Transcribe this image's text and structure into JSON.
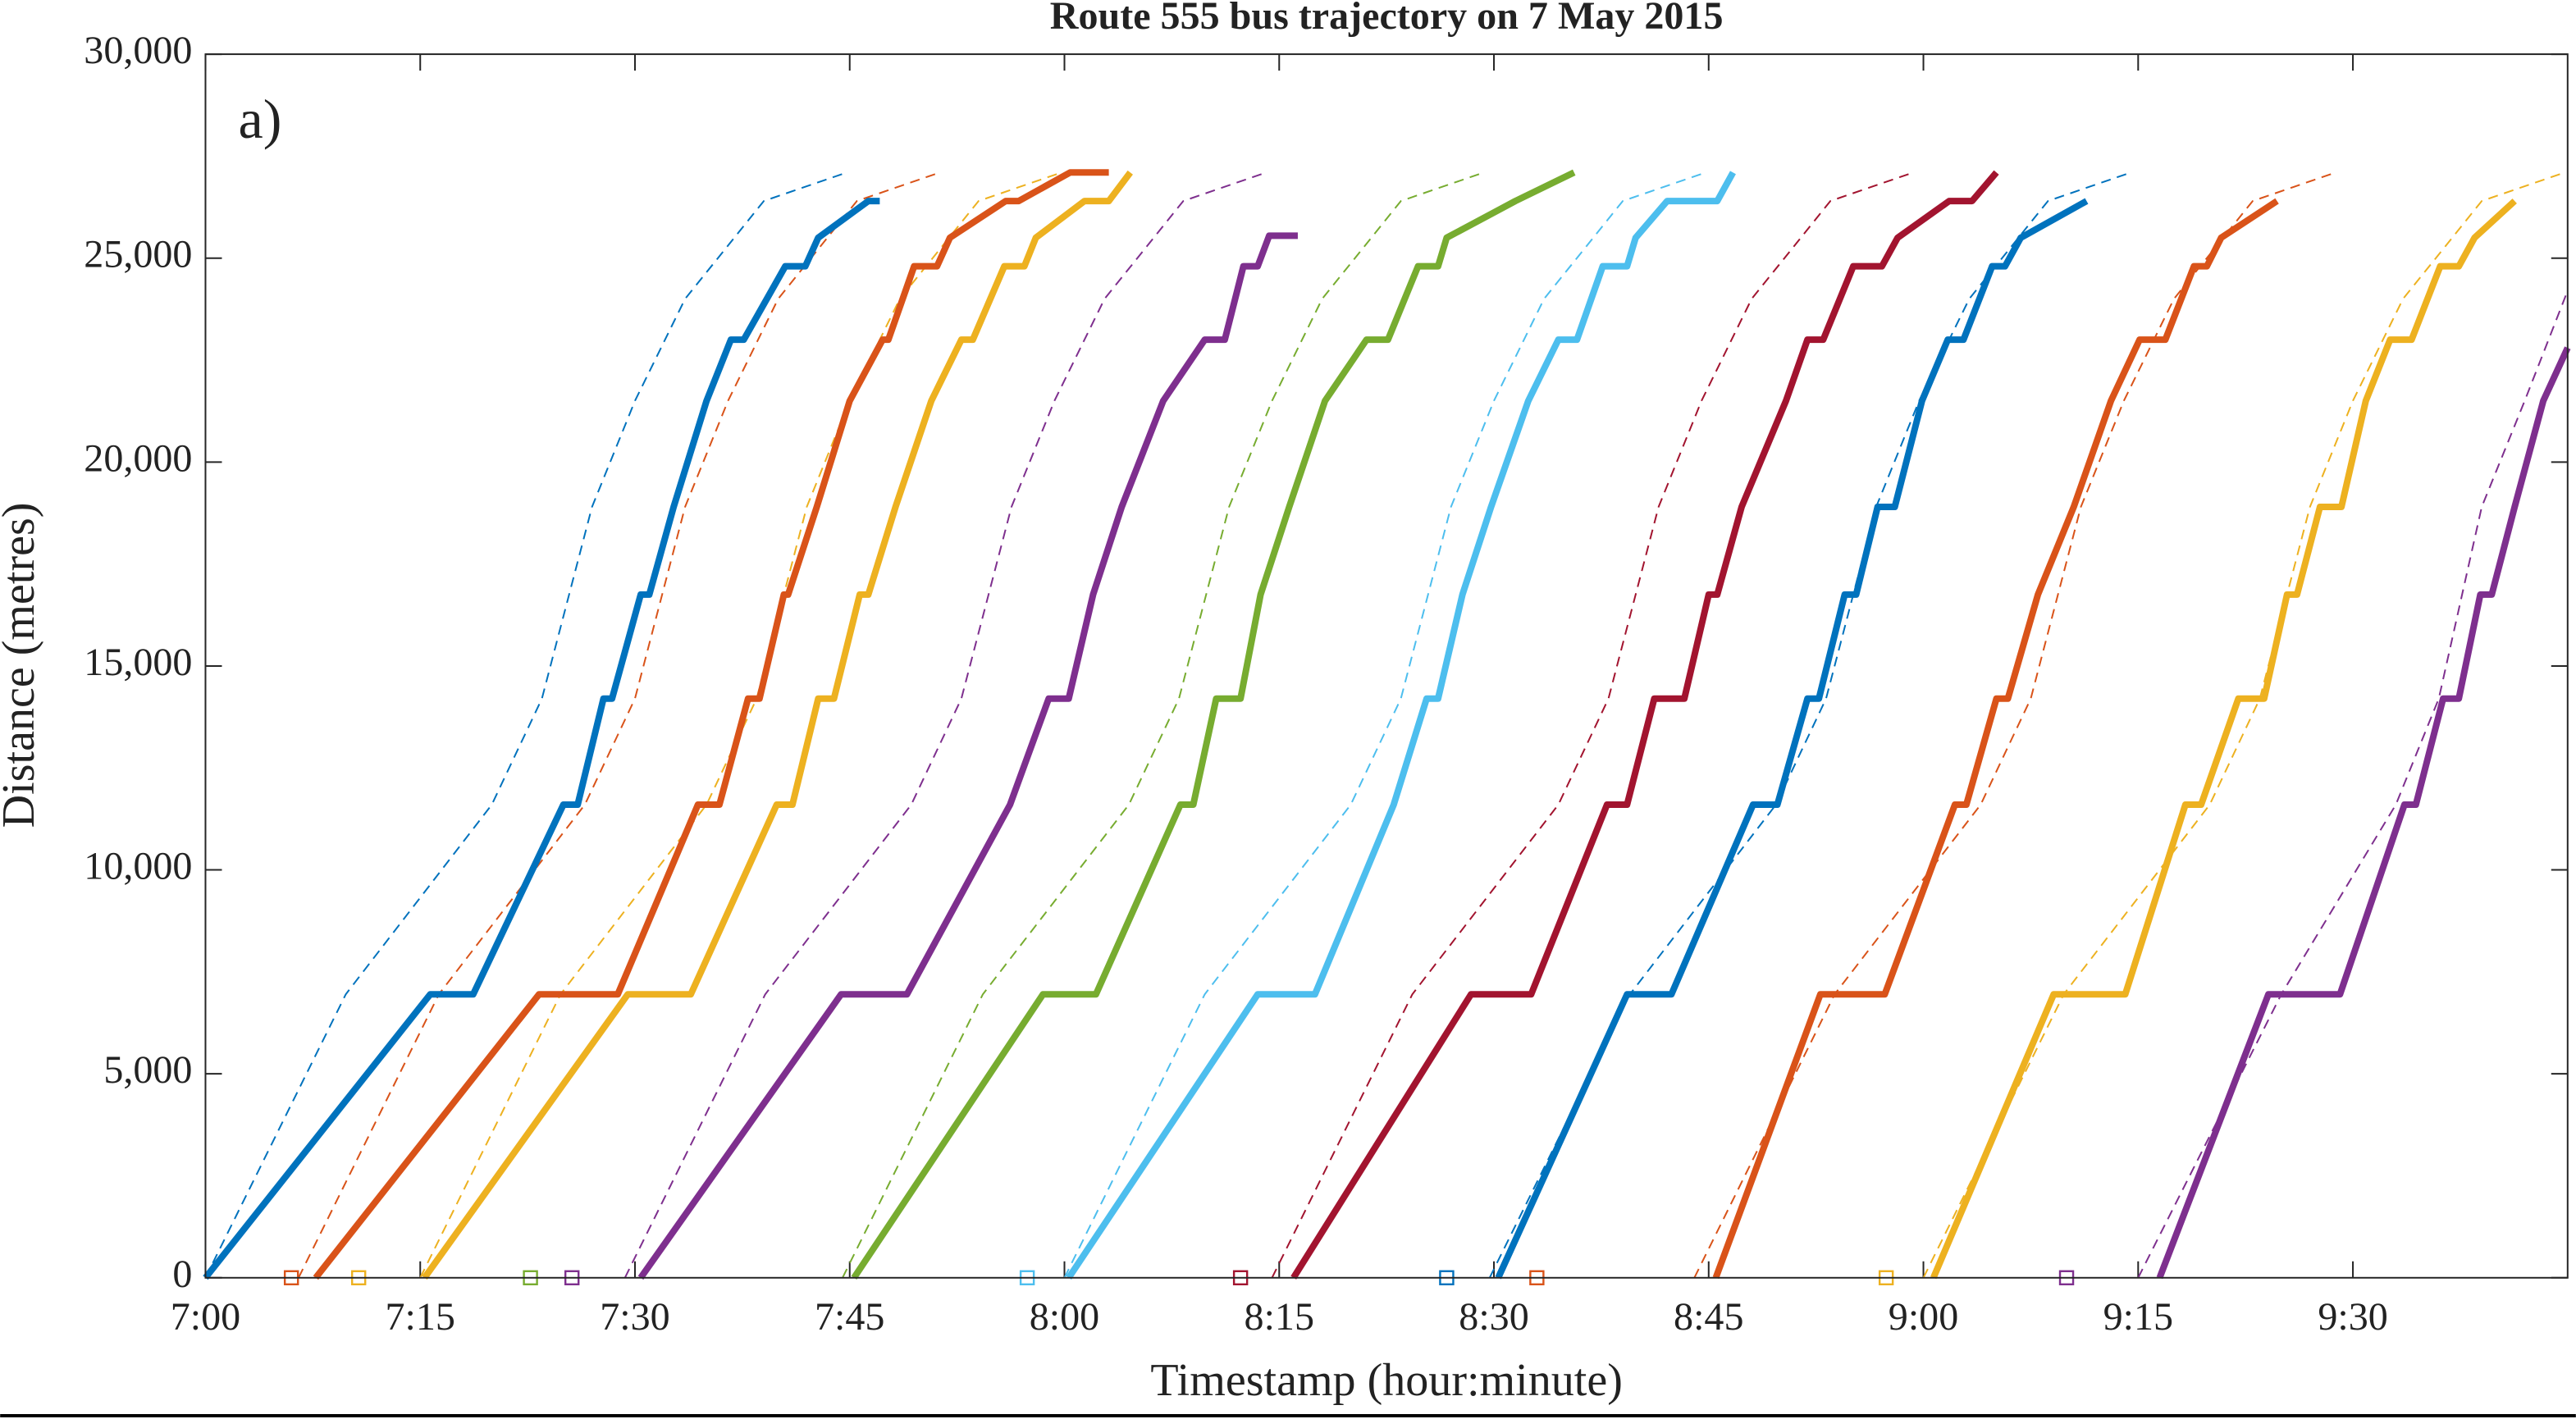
{
  "chart_data": {
    "type": "line",
    "title": "Route 555 bus trajectory on 7 May 2015",
    "annotation": "a)",
    "x_label": "Timestamp (hour:minute)",
    "y_label": "Distance (metres)",
    "xlim": [
      0,
      165
    ],
    "ylim": [
      0,
      30000
    ],
    "xticks": [
      {
        "value": 0,
        "label": "7:00"
      },
      {
        "value": 15,
        "label": "7:15"
      },
      {
        "value": 30,
        "label": "7:30"
      },
      {
        "value": 45,
        "label": "7:45"
      },
      {
        "value": 60,
        "label": "8:00"
      },
      {
        "value": 75,
        "label": "8:15"
      },
      {
        "value": 90,
        "label": "8:30"
      },
      {
        "value": 105,
        "label": "8:45"
      },
      {
        "value": 120,
        "label": "9:00"
      },
      {
        "value": 135,
        "label": "9:15"
      },
      {
        "value": 150,
        "label": "9:30"
      }
    ],
    "yticks": [
      0,
      {
        "value": 5000,
        "label": "5,000"
      },
      {
        "value": 10000,
        "label": "10,000"
      },
      {
        "value": 15000,
        "label": "15,000"
      },
      {
        "value": 20000,
        "label": "20,000"
      },
      {
        "value": 25000,
        "label": "25,000"
      },
      {
        "value": 30000,
        "label": "30,000"
      }
    ],
    "series": [
      {
        "color": "#0072BD",
        "style": "dashed",
        "x": [
          0,
          9.8,
          20,
          23.5,
          27,
          30,
          33.5,
          39,
          44.8
        ],
        "values": [
          0,
          6950,
          11600,
          14200,
          18900,
          21500,
          24000,
          26400,
          27100
        ]
      },
      {
        "color": "#D95319",
        "style": "dashed",
        "x": [
          6.5,
          16.3,
          26.5,
          30,
          33.5,
          36.5,
          40,
          45.5,
          51.3
        ],
        "values": [
          0,
          6950,
          11600,
          14200,
          18900,
          21500,
          24000,
          26400,
          27100
        ]
      },
      {
        "color": "#EDB120",
        "style": "dashed",
        "x": [
          15,
          24.8,
          35,
          38.5,
          42,
          45,
          48.5,
          54,
          59.8
        ],
        "values": [
          0,
          6950,
          11600,
          14200,
          18900,
          21500,
          24000,
          26400,
          27100
        ]
      },
      {
        "color": "#7E2F8E",
        "style": "dashed",
        "x": [
          29.3,
          39.1,
          49.3,
          52.8,
          56.3,
          59.3,
          62.8,
          68.3,
          74.1
        ],
        "values": [
          0,
          6950,
          11600,
          14200,
          18900,
          21500,
          24000,
          26400,
          27100
        ]
      },
      {
        "color": "#77AC30",
        "style": "dashed",
        "x": [
          44.5,
          54.3,
          64.5,
          68,
          71.5,
          74.5,
          78,
          83.5,
          89.3
        ],
        "values": [
          0,
          6950,
          11600,
          14200,
          18900,
          21500,
          24000,
          26400,
          27100
        ]
      },
      {
        "color": "#4DBEEE",
        "style": "dashed",
        "x": [
          60,
          69.8,
          80,
          83.5,
          87,
          90,
          93.5,
          99,
          104.8
        ],
        "values": [
          0,
          6950,
          11600,
          14200,
          18900,
          21500,
          24000,
          26400,
          27100
        ]
      },
      {
        "color": "#A2142F",
        "style": "dashed",
        "x": [
          74.5,
          84.3,
          94.5,
          98,
          101.5,
          104.5,
          108,
          113.5,
          119.3
        ],
        "values": [
          0,
          6950,
          11600,
          14200,
          18900,
          21500,
          24000,
          26400,
          27100
        ]
      },
      {
        "color": "#0072BD",
        "style": "dashed",
        "x": [
          89.7,
          99.5,
          109.7,
          113.2,
          116.7,
          119.7,
          123.2,
          128.7,
          134.5
        ],
        "values": [
          0,
          6950,
          11600,
          14200,
          18900,
          21500,
          24000,
          26400,
          27100
        ]
      },
      {
        "color": "#D95319",
        "style": "dashed",
        "x": [
          104,
          113.8,
          124,
          127.5,
          131,
          134,
          137.5,
          143,
          148.8
        ],
        "values": [
          0,
          6950,
          11600,
          14200,
          18900,
          21500,
          24000,
          26400,
          27100
        ]
      },
      {
        "color": "#EDB120",
        "style": "dashed",
        "x": [
          120,
          129.8,
          140,
          143.5,
          147,
          150,
          153.5,
          159,
          164.8
        ],
        "values": [
          0,
          6950,
          11600,
          14200,
          18900,
          21500,
          24000,
          26400,
          27100
        ]
      },
      {
        "color": "#7E2F8E",
        "style": "dashed",
        "x": [
          135,
          145,
          153,
          156,
          159,
          162,
          165
        ],
        "values": [
          0,
          6950,
          11600,
          14200,
          18900,
          21500,
          24200
        ]
      },
      {
        "color": "#0072BD",
        "style": "solid",
        "x": [
          0,
          15.7,
          18.7,
          25,
          26,
          27.8,
          28.4,
          30.4,
          31,
          32.7,
          35,
          36.7,
          37.6,
          40.5,
          41.9,
          42.8,
          46.3,
          47.1
        ],
        "values": [
          0,
          6950,
          6950,
          11600,
          11600,
          14200,
          14200,
          16750,
          16750,
          18900,
          21500,
          23000,
          23000,
          24800,
          24800,
          25500,
          26400,
          26400
        ]
      },
      {
        "color": "#D95319",
        "style": "solid",
        "x": [
          7.7,
          23.3,
          28.8,
          34.4,
          35.9,
          37.9,
          38.7,
          40.4,
          40.7,
          42.7,
          45,
          47.3,
          47.7,
          49.5,
          51.1,
          52,
          55.9,
          56.8,
          60.4,
          63.1
        ],
        "values": [
          0,
          6950,
          6950,
          11600,
          11600,
          14200,
          14200,
          16750,
          16750,
          18900,
          21500,
          23000,
          23000,
          24800,
          24800,
          25500,
          26400,
          26400,
          27100,
          27100
        ]
      },
      {
        "color": "#EDB120",
        "style": "solid",
        "x": [
          15.3,
          29.5,
          33.9,
          39.9,
          41,
          42.8,
          43.9,
          45.7,
          46.3,
          48.2,
          50.7,
          52.8,
          53.6,
          55.8,
          57.2,
          58,
          61.4,
          63.1,
          64.6
        ],
        "values": [
          0,
          6950,
          6950,
          11600,
          11600,
          14200,
          14200,
          16750,
          16750,
          18900,
          21500,
          23000,
          23000,
          24800,
          24800,
          25500,
          26400,
          26400,
          27100
        ]
      },
      {
        "color": "#7E2F8E",
        "style": "solid",
        "x": [
          30.4,
          44.4,
          49,
          56.2,
          58.9,
          60.3,
          62,
          64,
          66.9,
          69.8,
          71.2,
          72.5,
          73.5,
          74.3,
          76.3
        ],
        "values": [
          0,
          6950,
          6950,
          11600,
          14200,
          14200,
          16750,
          18900,
          21500,
          23000,
          23000,
          24800,
          24800,
          25550,
          25550
        ]
      },
      {
        "color": "#77AC30",
        "style": "solid",
        "x": [
          45.3,
          58.5,
          62.2,
          68.1,
          69,
          70.6,
          72.3,
          73.7,
          75.7,
          78.2,
          81.1,
          82.6,
          84.7,
          86.1,
          86.7,
          91.5,
          95.6
        ],
        "values": [
          0,
          6950,
          6950,
          11600,
          11600,
          14200,
          14200,
          16750,
          18900,
          21500,
          23000,
          23000,
          24800,
          24800,
          25500,
          26400,
          27100
        ]
      },
      {
        "color": "#4DBEEE",
        "style": "solid",
        "x": [
          60.3,
          73.5,
          77.5,
          83,
          85.3,
          86.1,
          87.8,
          89.8,
          92.4,
          94.5,
          95.8,
          97.6,
          99.3,
          99.9,
          102.1,
          105.6,
          106.7
        ],
        "values": [
          0,
          6950,
          6950,
          11600,
          14200,
          14200,
          16750,
          18900,
          21500,
          23000,
          23000,
          24800,
          24800,
          25500,
          26400,
          26400,
          27100
        ]
      },
      {
        "color": "#A2142F",
        "style": "solid",
        "x": [
          76,
          88.4,
          92.6,
          97.9,
          99.3,
          101.2,
          103.3,
          105,
          105.6,
          107.3,
          110.4,
          111.9,
          113,
          115.1,
          117.1,
          118.2,
          121.8,
          123.4,
          125.1
        ],
        "values": [
          0,
          6950,
          6950,
          11600,
          11600,
          14200,
          14200,
          16750,
          16750,
          18900,
          21500,
          23000,
          23000,
          24800,
          24800,
          25500,
          26400,
          26400,
          27100
        ]
      },
      {
        "color": "#0072BD",
        "style": "solid",
        "x": [
          90.3,
          99.3,
          102.4,
          108.1,
          109.8,
          111.9,
          112.7,
          114.5,
          115.3,
          116.8,
          118,
          119.9,
          121.7,
          122.8,
          124.8,
          125.7,
          126.8,
          131.4
        ],
        "values": [
          0,
          6950,
          6950,
          11600,
          11600,
          14200,
          14200,
          16750,
          16750,
          18900,
          18900,
          21500,
          23000,
          23000,
          24800,
          24800,
          25500,
          26400
        ]
      },
      {
        "color": "#D95319",
        "style": "solid",
        "x": [
          105.5,
          112.8,
          117.3,
          122.2,
          123,
          125.1,
          125.9,
          128,
          130.5,
          133.1,
          135.1,
          136.9,
          138.9,
          139.8,
          140.8,
          144.7
        ],
        "values": [
          0,
          6950,
          6950,
          11600,
          11600,
          14200,
          14200,
          16750,
          18900,
          21500,
          23000,
          23000,
          24800,
          24800,
          25500,
          26400
        ]
      },
      {
        "color": "#EDB120",
        "style": "solid",
        "x": [
          120.7,
          129.1,
          134.1,
          138.3,
          139.4,
          142,
          143.8,
          145.4,
          146.1,
          147.7,
          149.2,
          150.9,
          152.6,
          154.1,
          156.1,
          157.4,
          158.5,
          161.3
        ],
        "values": [
          0,
          6950,
          6950,
          11600,
          11600,
          14200,
          14200,
          16750,
          16750,
          18900,
          18900,
          21500,
          23000,
          23000,
          24800,
          24800,
          25500,
          26400
        ]
      },
      {
        "color": "#7E2F8E",
        "style": "solid",
        "x": [
          136.5,
          144.1,
          149.1,
          153.6,
          154.4,
          156.3,
          157.4,
          158.9,
          159.7,
          161.3,
          163.3,
          165
        ],
        "values": [
          0,
          6950,
          6950,
          11600,
          11600,
          14200,
          14200,
          16750,
          16750,
          18900,
          21500,
          22800
        ]
      }
    ],
    "markers": {
      "x": [
        6,
        10.7,
        22.7,
        25.6,
        57.4,
        72.3,
        86.7,
        93,
        117.4,
        130
      ],
      "values": [
        0,
        0,
        0,
        0,
        0,
        0,
        0,
        0,
        0,
        0
      ],
      "colors": [
        "#D95319",
        "#EDB120",
        "#77AC30",
        "#7E2F8E",
        "#4DBEEE",
        "#A2142F",
        "#0072BD",
        "#D95319",
        "#EDB120",
        "#7E2F8E"
      ]
    }
  }
}
